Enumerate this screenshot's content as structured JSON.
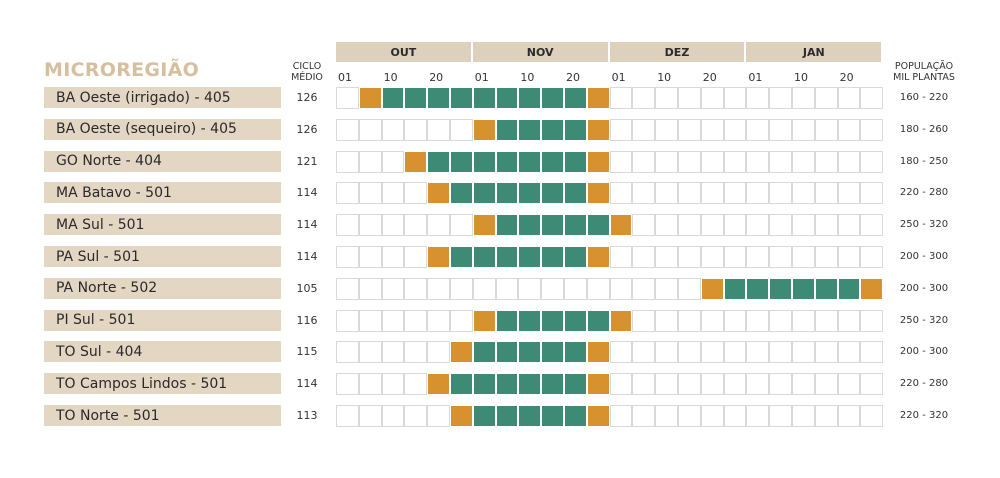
{
  "title": "MICROREGIÃO",
  "ciclo_header": [
    "CICLO",
    "MÉDIO"
  ],
  "pop_header": [
    "POPULAÇÃO",
    "MIL PLANTAS"
  ],
  "colors": {
    "green": "#3d8b74",
    "orange": "#d8912f",
    "label_bg": "#e3d6c3",
    "header_bg": "#ddd0bd",
    "title": "#d6bf9f"
  },
  "chart_data": {
    "type": "table",
    "months": [
      "OUT",
      "NOV",
      "DEZ",
      "JAN"
    ],
    "day_ticks": [
      "01",
      "10",
      "20",
      "01",
      "10",
      "20",
      "01",
      "10",
      "20",
      "01",
      "10",
      "20"
    ],
    "period_columns": 24,
    "periods_per_month": 6,
    "cell_codes": {
      "0": "empty",
      "1": "orange",
      "2": "green"
    },
    "rows": [
      {
        "label": "BA Oeste (irrigado) - 405",
        "ciclo": "126",
        "pop": "160 - 220",
        "cells": [
          0,
          1,
          2,
          2,
          2,
          2,
          2,
          2,
          2,
          2,
          2,
          1,
          0,
          0,
          0,
          0,
          0,
          0,
          0,
          0,
          0,
          0,
          0,
          0
        ]
      },
      {
        "label": "BA Oeste (sequeiro) - 405",
        "ciclo": "126",
        "pop": "180 - 260",
        "cells": [
          0,
          0,
          0,
          0,
          0,
          0,
          1,
          2,
          2,
          2,
          2,
          1,
          0,
          0,
          0,
          0,
          0,
          0,
          0,
          0,
          0,
          0,
          0,
          0
        ]
      },
      {
        "label": "GO Norte - 404",
        "ciclo": "121",
        "pop": "180 - 250",
        "cells": [
          0,
          0,
          0,
          1,
          2,
          2,
          2,
          2,
          2,
          2,
          2,
          1,
          0,
          0,
          0,
          0,
          0,
          0,
          0,
          0,
          0,
          0,
          0,
          0
        ]
      },
      {
        "label": "MA Batavo - 501",
        "ciclo": "114",
        "pop": "220 - 280",
        "cells": [
          0,
          0,
          0,
          0,
          1,
          2,
          2,
          2,
          2,
          2,
          2,
          1,
          0,
          0,
          0,
          0,
          0,
          0,
          0,
          0,
          0,
          0,
          0,
          0
        ]
      },
      {
        "label": "MA Sul - 501",
        "ciclo": "114",
        "pop": "250 - 320",
        "cells": [
          0,
          0,
          0,
          0,
          0,
          0,
          1,
          2,
          2,
          2,
          2,
          2,
          1,
          0,
          0,
          0,
          0,
          0,
          0,
          0,
          0,
          0,
          0,
          0
        ]
      },
      {
        "label": "PA Sul - 501",
        "ciclo": "114",
        "pop": "200 - 300",
        "cells": [
          0,
          0,
          0,
          0,
          1,
          2,
          2,
          2,
          2,
          2,
          2,
          1,
          0,
          0,
          0,
          0,
          0,
          0,
          0,
          0,
          0,
          0,
          0,
          0
        ]
      },
      {
        "label": "PA Norte - 502",
        "ciclo": "105",
        "pop": "200 - 300",
        "cells": [
          0,
          0,
          0,
          0,
          0,
          0,
          0,
          0,
          0,
          0,
          0,
          0,
          0,
          0,
          0,
          0,
          1,
          2,
          2,
          2,
          2,
          2,
          2,
          1
        ]
      },
      {
        "label": "PI Sul - 501",
        "ciclo": "116",
        "pop": "250 - 320",
        "cells": [
          0,
          0,
          0,
          0,
          0,
          0,
          1,
          2,
          2,
          2,
          2,
          2,
          1,
          0,
          0,
          0,
          0,
          0,
          0,
          0,
          0,
          0,
          0,
          0
        ]
      },
      {
        "label": "TO Sul - 404",
        "ciclo": "115",
        "pop": "200 - 300",
        "cells": [
          0,
          0,
          0,
          0,
          0,
          1,
          2,
          2,
          2,
          2,
          2,
          1,
          0,
          0,
          0,
          0,
          0,
          0,
          0,
          0,
          0,
          0,
          0,
          0
        ]
      },
      {
        "label": "TO Campos Lindos - 501",
        "ciclo": "114",
        "pop": "220 - 280",
        "cells": [
          0,
          0,
          0,
          0,
          1,
          2,
          2,
          2,
          2,
          2,
          2,
          1,
          0,
          0,
          0,
          0,
          0,
          0,
          0,
          0,
          0,
          0,
          0,
          0
        ]
      },
      {
        "label": "TO Norte - 501",
        "ciclo": "113",
        "pop": "220 - 320",
        "cells": [
          0,
          0,
          0,
          0,
          0,
          1,
          2,
          2,
          2,
          2,
          2,
          1,
          0,
          0,
          0,
          0,
          0,
          0,
          0,
          0,
          0,
          0,
          0,
          0
        ]
      }
    ]
  }
}
